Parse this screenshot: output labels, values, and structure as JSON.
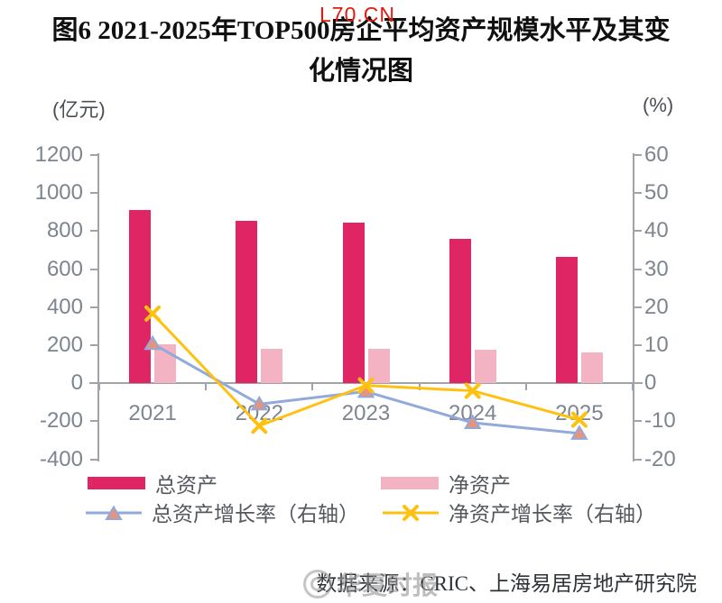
{
  "figure": {
    "title_line1": "图6 2021-2025年TOP500房企平均资产规模水平及其变",
    "title_line2": "化情况图"
  },
  "watermarks": {
    "top_text": "L70.CN",
    "bottom_text": "华夏时报"
  },
  "source": {
    "text": "数据来源：CRIC、上海易居房地产研究院"
  },
  "chart_data": {
    "type": "bar+line combo",
    "title": "2021-2025年TOP500房企平均资产规模水平及其变化情况",
    "categories": [
      "2021",
      "2022",
      "2023",
      "2024",
      "2025"
    ],
    "bar_series": [
      {
        "name": "总资产",
        "axis": "left",
        "unit": "亿元",
        "color": "#E02565",
        "values": [
          910,
          855,
          845,
          760,
          665
        ]
      },
      {
        "name": "净资产",
        "axis": "left",
        "unit": "亿元",
        "color": "#F3B3C3",
        "values": [
          205,
          183,
          180,
          177,
          162
        ]
      }
    ],
    "line_series": [
      {
        "name": "总资产增长率（右轴）",
        "axis": "right",
        "unit": "%",
        "color": "#92A9DC",
        "marker": "triangle",
        "marker_fill": "#E8937A",
        "values": [
          10.4,
          -5.5,
          -2.2,
          -10.4,
          -13.2
        ]
      },
      {
        "name": "净资产增长率（右轴）",
        "axis": "right",
        "unit": "%",
        "color": "#FFC110",
        "marker": "x",
        "values": [
          18.3,
          -11.2,
          -0.6,
          -2.0,
          -9.6
        ]
      }
    ],
    "left_axis": {
      "unit": "(亿元)",
      "min": -400,
      "max": 1200,
      "tick_step": 200,
      "ticks": [
        "1200",
        "1000",
        "800",
        "600",
        "400",
        "200",
        "0",
        "-200",
        "-400"
      ]
    },
    "right_axis": {
      "unit": "(%)",
      "min": -20,
      "max": 60,
      "tick_step": 10,
      "ticks": [
        "60",
        "50",
        "40",
        "30",
        "20",
        "10",
        "0",
        "-10",
        "-20"
      ]
    },
    "grid": false,
    "legend_position": "bottom"
  },
  "colors": {
    "bar_total_assets": "#E02565",
    "bar_net_assets": "#F3B3C3",
    "line_total_growth": "#92A9DC",
    "line_net_growth": "#FFC110",
    "marker_triangle_fill": "#E8937A",
    "axis_line": "#A0A3A8",
    "tick_text": "#7C8590",
    "legend_text": "#54575C",
    "title_text": "#101010",
    "watermark_red": "#E41910",
    "watermark_gray": "#969696"
  }
}
